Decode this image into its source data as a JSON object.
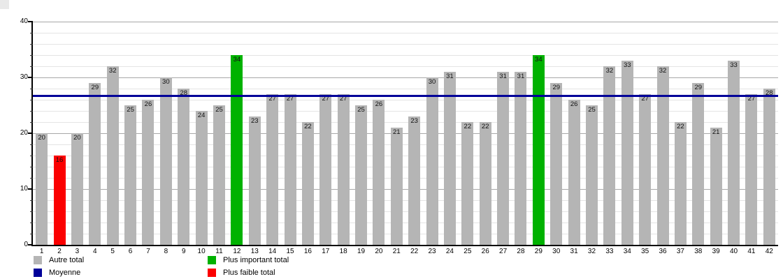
{
  "chart_data": {
    "type": "bar",
    "title": "",
    "xlabel": "",
    "ylabel": "",
    "categories": [
      "1",
      "2",
      "3",
      "4",
      "5",
      "6",
      "7",
      "8",
      "9",
      "10",
      "11",
      "12",
      "13",
      "14",
      "15",
      "16",
      "17",
      "18",
      "19",
      "20",
      "21",
      "22",
      "23",
      "24",
      "25",
      "26",
      "27",
      "28",
      "29",
      "30",
      "31",
      "32",
      "33",
      "34",
      "35",
      "36",
      "37",
      "38",
      "39",
      "40",
      "41",
      "42"
    ],
    "values": [
      20,
      16,
      20,
      29,
      32,
      25,
      26,
      30,
      28,
      24,
      25,
      34,
      23,
      27,
      27,
      22,
      27,
      27,
      25,
      26,
      21,
      23,
      30,
      31,
      22,
      22,
      31,
      31,
      34,
      29,
      26,
      25,
      32,
      33,
      27,
      32,
      22,
      29,
      21,
      33,
      27,
      28
    ],
    "ylim": [
      0,
      40
    ],
    "y_major_step": 10,
    "y_minor_step": 2,
    "grid": true,
    "average": 26.71,
    "max_value": 34,
    "min_value": 16,
    "bar_color_default": "#b5b5b5",
    "bar_color_max": "#00b200",
    "bar_color_min": "#fb0000",
    "average_line_color": "#000099",
    "legend_position": "bottom",
    "legend": [
      {
        "label": "Autre total",
        "color": "#b5b5b5"
      },
      {
        "label": "Moyenne",
        "color": "#000099"
      },
      {
        "label": "Plus important total",
        "color": "#00b200"
      },
      {
        "label": "Plus faible total",
        "color": "#fb0000"
      }
    ]
  }
}
